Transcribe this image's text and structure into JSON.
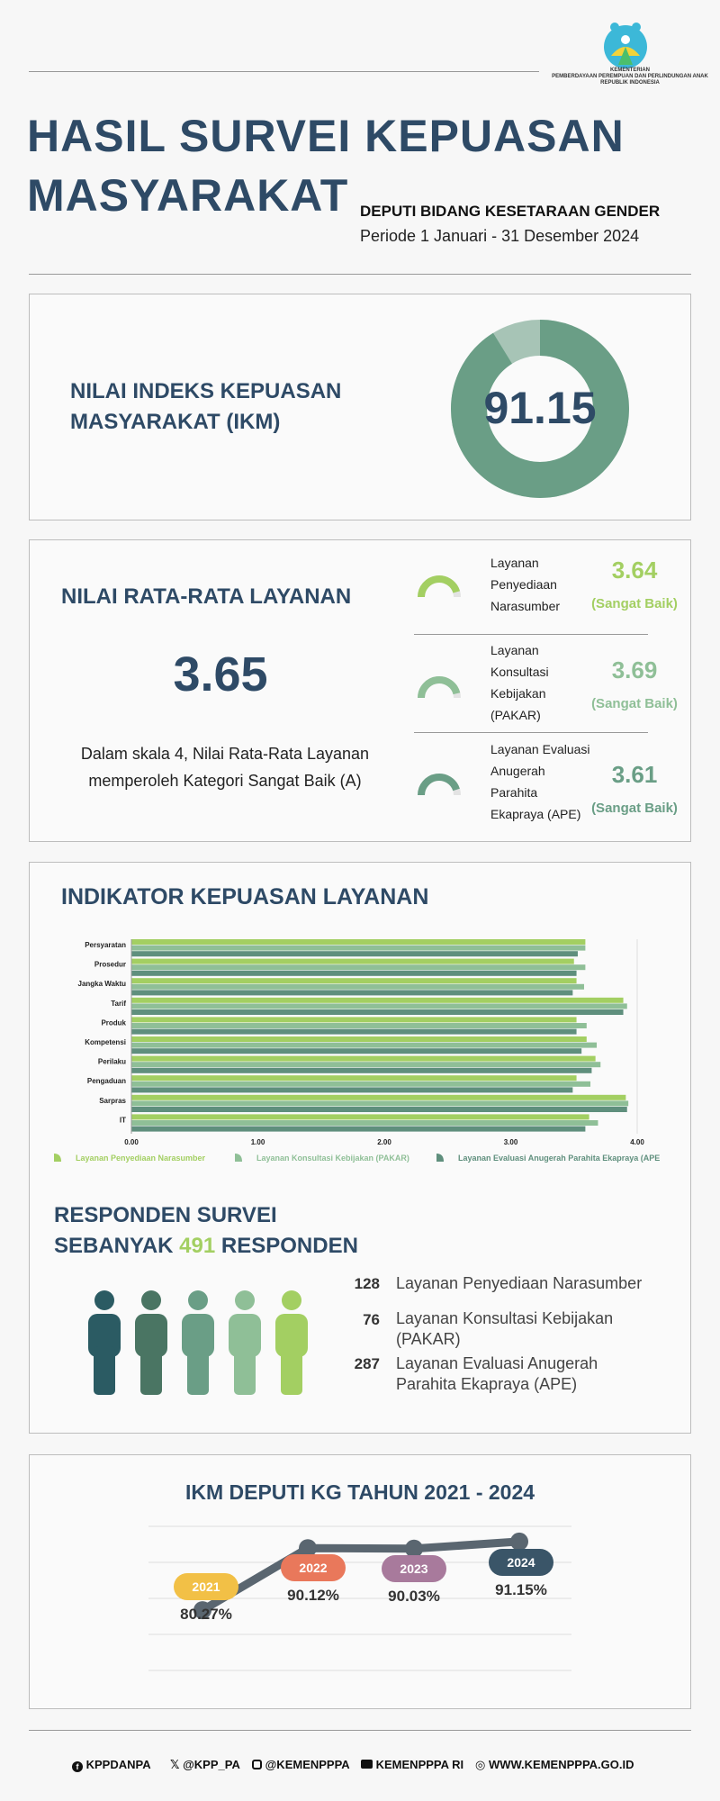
{
  "header": {
    "title_line1": "HASIL SURVEI KEPUASAN",
    "title_line2": "MASYARAKAT",
    "department": "DEPUTI BIDANG KESETARAAN GENDER",
    "period": "Periode 1 Januari - 31 Desember 2024",
    "logo_line1": "KEMENTERIAN",
    "logo_line2": "PEMBERDAYAAN PEREMPUAN DAN PERLINDUNGAN ANAK",
    "logo_line3": "REPUBLIK INDONESIA"
  },
  "ikm": {
    "label_line1": "NILAI INDEKS KEPUASAN",
    "label_line2": "MASYARAKAT (IKM)",
    "value": "91.15",
    "fraction": 0.9115
  },
  "rata_rata": {
    "title": "NILAI RATA-RATA LAYANAN",
    "value": "3.65",
    "desc_line1": "Dalam skala 4, Nilai Rata-Rata Layanan",
    "desc_line2": "memperoleh Kategori Sangat Baik (A)",
    "services": [
      {
        "name_lines": [
          "Layanan",
          "Penyediaan",
          "Narasumber"
        ],
        "score": "3.64",
        "category": "(Sangat Baik)",
        "color": "#a3cf62",
        "value": 3.64
      },
      {
        "name_lines": [
          "Layanan",
          "Konsultasi",
          "Kebijakan",
          "(PAKAR)"
        ],
        "score": "3.69",
        "category": "(Sangat Baik)",
        "color": "#8fbf97",
        "value": 3.69
      },
      {
        "name_lines": [
          "Layanan Evaluasi",
          "Anugerah",
          "Parahita",
          "Ekapraya (APE)"
        ],
        "score": "3.61",
        "category": "(Sangat Baik)",
        "color": "#6a9e86",
        "value": 3.61
      }
    ]
  },
  "indikator": {
    "title": "INDIKATOR KEPUASAN LAYANAN"
  },
  "chart_data": {
    "type": "bar",
    "orientation": "horizontal",
    "title": "INDIKATOR KEPUASAN LAYANAN",
    "categories": [
      "Persyaratan",
      "Prosedur",
      "Jangka Waktu",
      "Tarif",
      "Produk",
      "Kompetensi",
      "Perilaku",
      "Pengaduan",
      "Sarpras",
      "IT"
    ],
    "xlim": [
      0,
      4
    ],
    "ticks": [
      "0.00",
      "1.00",
      "2.00",
      "3.00",
      "4.00"
    ],
    "tick_values": [
      0,
      1,
      2,
      3,
      4
    ],
    "series": [
      {
        "name": "Layanan Penyediaan Narasumber",
        "color": "#a3cf62",
        "values": [
          3.59,
          3.5,
          3.52,
          3.89,
          3.52,
          3.6,
          3.67,
          3.52,
          3.91,
          3.62
        ]
      },
      {
        "name": "Layanan Konsultasi Kebijakan (PAKAR)",
        "color": "#8fbf97",
        "values": [
          3.59,
          3.59,
          3.58,
          3.92,
          3.6,
          3.68,
          3.71,
          3.63,
          3.93,
          3.69
        ]
      },
      {
        "name": "Layanan Evaluasi Anugerah Parahita Ekapraya (APE",
        "color": "#5f8f7d",
        "values": [
          3.53,
          3.52,
          3.49,
          3.89,
          3.52,
          3.56,
          3.64,
          3.49,
          3.92,
          3.59
        ]
      }
    ]
  },
  "responden": {
    "title_line1": "RESPONDEN SURVEI",
    "title_prefix": "SEBANYAK",
    "total": "491",
    "title_suffix": "RESPONDEN",
    "accent": "#a3cf62",
    "people_colors": [
      "#2b5b63",
      "#4a7563",
      "#6a9e86",
      "#8fbf97",
      "#a3cf62"
    ],
    "items": [
      {
        "count": "128",
        "name_lines": [
          "Layanan Penyediaan Narasumber"
        ]
      },
      {
        "count": "76",
        "name_lines": [
          "Layanan Konsultasi Kebijakan",
          "(PAKAR)"
        ]
      },
      {
        "count": "287",
        "name_lines": [
          "Layanan Evaluasi Anugerah",
          "Parahita Ekapraya (APE)"
        ]
      }
    ]
  },
  "trend": {
    "title": "IKM DEPUTI KG TAHUN 2021 - 2024",
    "points": [
      {
        "year": "2021",
        "value": "80.27%",
        "num": 80.27,
        "color": "#f2c046"
      },
      {
        "year": "2022",
        "value": "90.12%",
        "num": 90.12,
        "color": "#e9785b"
      },
      {
        "year": "2023",
        "value": "90.03%",
        "num": 90.03,
        "color": "#a87a9c"
      },
      {
        "year": "2024",
        "value": "91.15%",
        "num": 91.15,
        "color": "#3a5568"
      }
    ]
  },
  "footer": {
    "facebook": "KPPDANPA",
    "twitter": "@KPP_PA",
    "instagram": "@KEMENPPPA",
    "youtube": "KEMENPPPA RI",
    "website": "WWW.KEMENPPPA.GO.ID"
  }
}
